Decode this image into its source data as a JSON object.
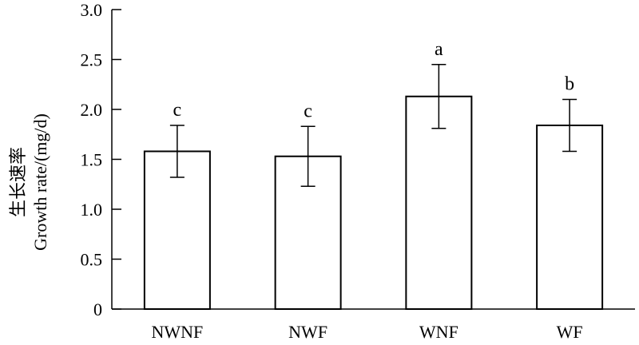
{
  "chart_data": {
    "type": "bar",
    "categories": [
      "NWNF",
      "NWF",
      "WNF",
      "WF"
    ],
    "values": [
      1.58,
      1.53,
      2.13,
      1.84
    ],
    "errors": [
      0.26,
      0.3,
      0.32,
      0.26
    ],
    "significance": [
      "c",
      "c",
      "a",
      "b"
    ],
    "ylabel_cn": "生长速率",
    "ylabel": "Growth rate/(mg/d)",
    "ylim": [
      0,
      3.0
    ],
    "yticks": [
      0,
      0.5,
      1.0,
      1.5,
      2.0,
      2.5,
      3.0
    ],
    "ytick_labels": [
      "0",
      "0.5",
      "1.0",
      "1.5",
      "2.0",
      "2.5",
      "3.0"
    ],
    "grid": false,
    "bar_fill": "#ffffff",
    "bar_stroke": "#000000"
  }
}
